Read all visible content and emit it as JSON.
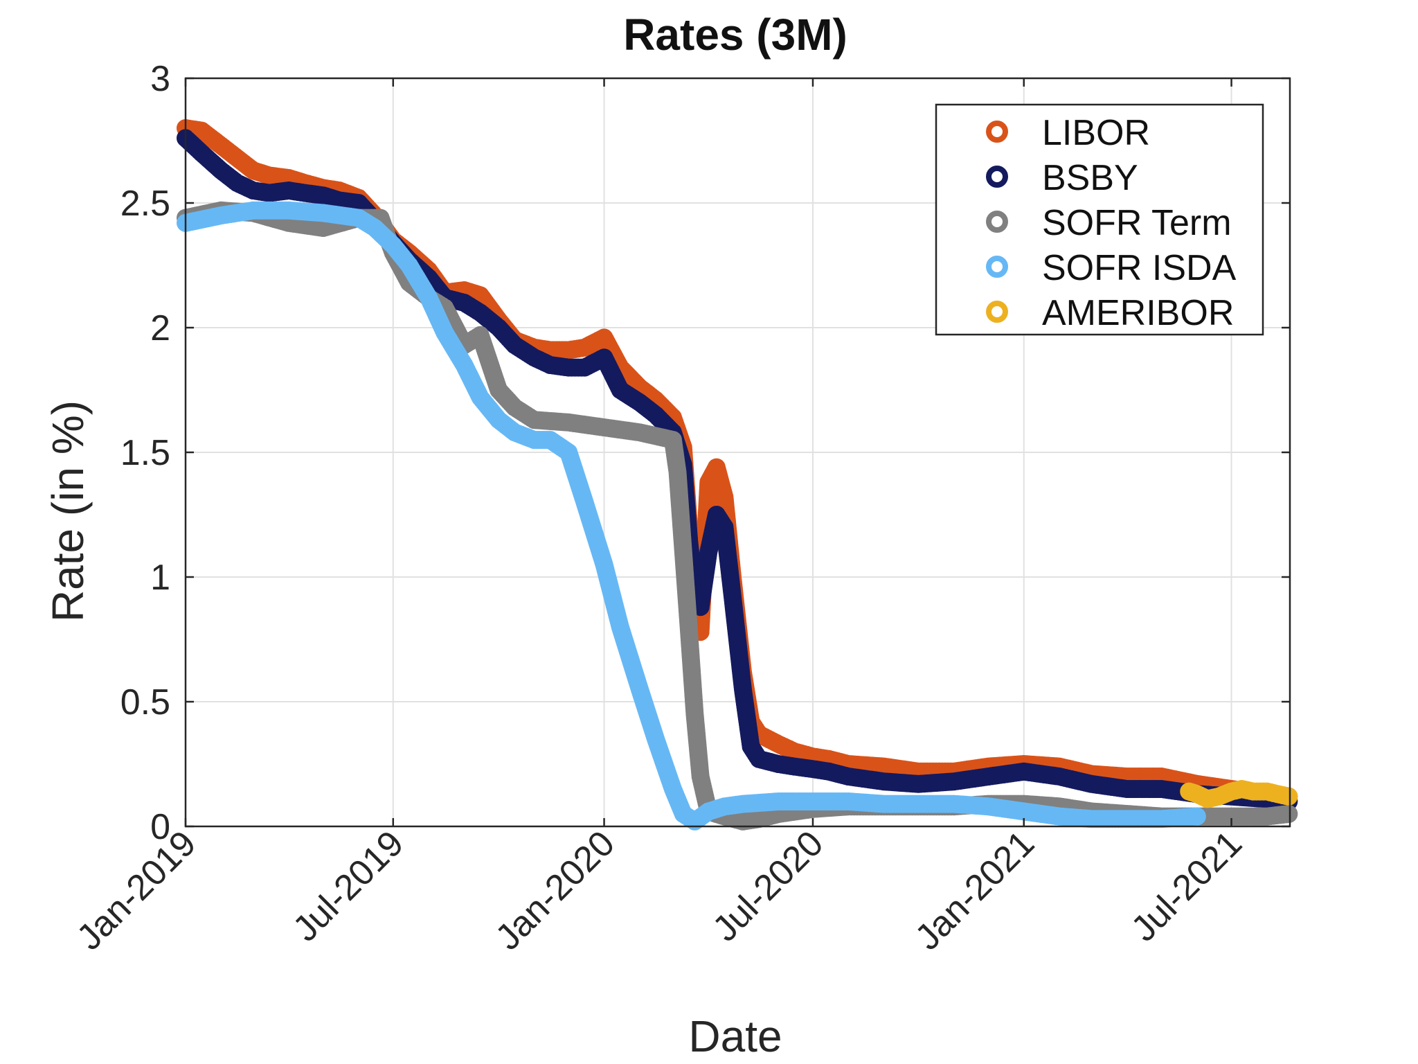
{
  "chart_data": {
    "type": "scatter",
    "title": "Rates (3M)",
    "xlabel": "Date",
    "ylabel": "Rate (in %)",
    "x_axis_type": "date",
    "xlim": [
      "2019-01-01",
      "2021-08-21"
    ],
    "ylim": [
      0,
      3
    ],
    "xticks": [
      "2019-01-01",
      "2019-07-01",
      "2020-01-01",
      "2020-07-01",
      "2021-01-01",
      "2021-07-01"
    ],
    "xtick_labels": [
      "Jan-2019",
      "Jul-2019",
      "Jan-2020",
      "Jul-2020",
      "Jan-2021",
      "Jul-2021"
    ],
    "yticks": [
      0,
      0.5,
      1,
      1.5,
      2,
      2.5,
      3
    ],
    "ytick_labels": [
      "0",
      "0.5",
      "1",
      "1.5",
      "2",
      "2.5",
      "3"
    ],
    "grid": true,
    "legend_position": "top-right",
    "marker": "open-circle",
    "series": [
      {
        "name": "LIBOR",
        "color": "#d95319",
        "x": [
          "2019-01-01",
          "2019-01-15",
          "2019-02-01",
          "2019-02-15",
          "2019-03-01",
          "2019-03-15",
          "2019-04-01",
          "2019-04-15",
          "2019-05-01",
          "2019-05-15",
          "2019-06-01",
          "2019-06-15",
          "2019-07-01",
          "2019-07-15",
          "2019-08-01",
          "2019-08-15",
          "2019-09-01",
          "2019-09-15",
          "2019-10-01",
          "2019-10-15",
          "2019-11-01",
          "2019-11-15",
          "2019-12-01",
          "2019-12-15",
          "2020-01-01",
          "2020-01-15",
          "2020-02-01",
          "2020-02-15",
          "2020-03-01",
          "2020-03-10",
          "2020-03-15",
          "2020-03-20",
          "2020-03-25",
          "2020-04-01",
          "2020-04-08",
          "2020-04-15",
          "2020-04-22",
          "2020-05-01",
          "2020-05-08",
          "2020-05-15",
          "2020-06-01",
          "2020-06-15",
          "2020-07-01",
          "2020-07-15",
          "2020-08-01",
          "2020-09-01",
          "2020-10-01",
          "2020-11-01",
          "2020-12-01",
          "2021-01-01",
          "2021-02-01",
          "2021-03-01",
          "2021-04-01",
          "2021-05-01",
          "2021-06-01",
          "2021-07-01",
          "2021-08-01",
          "2021-08-20"
        ],
        "y": [
          2.8,
          2.79,
          2.73,
          2.68,
          2.63,
          2.61,
          2.6,
          2.58,
          2.56,
          2.55,
          2.52,
          2.45,
          2.35,
          2.3,
          2.23,
          2.14,
          2.15,
          2.13,
          2.03,
          1.95,
          1.92,
          1.91,
          1.91,
          1.92,
          1.96,
          1.84,
          1.76,
          1.71,
          1.64,
          1.52,
          1.2,
          0.95,
          0.78,
          1.38,
          1.44,
          1.32,
          1.0,
          0.62,
          0.42,
          0.37,
          0.33,
          0.3,
          0.28,
          0.27,
          0.25,
          0.24,
          0.22,
          0.22,
          0.24,
          0.25,
          0.24,
          0.21,
          0.2,
          0.2,
          0.17,
          0.15,
          0.13,
          0.12
        ]
      },
      {
        "name": "BSBY",
        "color": "#141a5e",
        "x": [
          "2019-01-01",
          "2019-01-15",
          "2019-02-01",
          "2019-02-15",
          "2019-03-01",
          "2019-03-15",
          "2019-04-01",
          "2019-04-15",
          "2019-05-01",
          "2019-05-15",
          "2019-06-01",
          "2019-06-15",
          "2019-07-01",
          "2019-07-15",
          "2019-08-01",
          "2019-08-15",
          "2019-09-01",
          "2019-09-15",
          "2019-10-01",
          "2019-10-15",
          "2019-11-01",
          "2019-11-15",
          "2019-12-01",
          "2019-12-15",
          "2020-01-01",
          "2020-01-15",
          "2020-02-01",
          "2020-02-15",
          "2020-03-01",
          "2020-03-10",
          "2020-03-15",
          "2020-03-20",
          "2020-03-25",
          "2020-04-01",
          "2020-04-08",
          "2020-04-15",
          "2020-04-22",
          "2020-05-01",
          "2020-05-08",
          "2020-05-15",
          "2020-06-01",
          "2020-06-15",
          "2020-07-01",
          "2020-07-15",
          "2020-08-01",
          "2020-09-01",
          "2020-10-01",
          "2020-11-01",
          "2020-12-01",
          "2021-01-01",
          "2021-02-01",
          "2021-03-01",
          "2021-04-01",
          "2021-05-01",
          "2021-06-01",
          "2021-07-01",
          "2021-08-01",
          "2021-08-20"
        ],
        "y": [
          2.76,
          2.7,
          2.63,
          2.58,
          2.55,
          2.54,
          2.55,
          2.54,
          2.53,
          2.51,
          2.5,
          2.43,
          2.34,
          2.27,
          2.2,
          2.12,
          2.1,
          2.06,
          2.0,
          1.93,
          1.88,
          1.85,
          1.84,
          1.84,
          1.88,
          1.75,
          1.7,
          1.65,
          1.58,
          1.45,
          1.15,
          0.93,
          0.88,
          1.1,
          1.25,
          1.2,
          0.92,
          0.55,
          0.32,
          0.27,
          0.25,
          0.24,
          0.23,
          0.22,
          0.2,
          0.18,
          0.17,
          0.18,
          0.2,
          0.22,
          0.2,
          0.17,
          0.15,
          0.15,
          0.13,
          0.12,
          0.11,
          0.1
        ]
      },
      {
        "name": "SOFR Term",
        "color": "#808080",
        "x": [
          "2019-01-01",
          "2019-02-01",
          "2019-03-01",
          "2019-04-01",
          "2019-05-01",
          "2019-06-01",
          "2019-06-20",
          "2019-07-01",
          "2019-07-15",
          "2019-08-01",
          "2019-08-15",
          "2019-09-01",
          "2019-09-15",
          "2019-10-01",
          "2019-10-15",
          "2019-11-01",
          "2019-12-01",
          "2020-01-01",
          "2020-02-01",
          "2020-03-01",
          "2020-03-05",
          "2020-03-10",
          "2020-03-15",
          "2020-03-20",
          "2020-03-25",
          "2020-04-01",
          "2020-04-15",
          "2020-05-01",
          "2020-05-15",
          "2020-06-01",
          "2020-07-01",
          "2020-08-01",
          "2020-09-01",
          "2020-10-01",
          "2020-11-01",
          "2020-12-01",
          "2021-01-01",
          "2021-02-01",
          "2021-03-01",
          "2021-04-01",
          "2021-05-01",
          "2021-06-01",
          "2021-07-01",
          "2021-08-01",
          "2021-08-20"
        ],
        "y": [
          2.44,
          2.47,
          2.46,
          2.42,
          2.4,
          2.44,
          2.44,
          2.3,
          2.18,
          2.12,
          2.08,
          1.93,
          1.97,
          1.75,
          1.68,
          1.63,
          1.62,
          1.6,
          1.58,
          1.55,
          1.42,
          1.1,
          0.78,
          0.45,
          0.2,
          0.06,
          0.04,
          0.02,
          0.03,
          0.05,
          0.07,
          0.08,
          0.08,
          0.08,
          0.08,
          0.09,
          0.09,
          0.08,
          0.06,
          0.05,
          0.04,
          0.04,
          0.04,
          0.04,
          0.05
        ]
      },
      {
        "name": "SOFR ISDA",
        "color": "#66b8f5",
        "x": [
          "2019-01-01",
          "2019-02-01",
          "2019-03-01",
          "2019-04-01",
          "2019-05-01",
          "2019-06-01",
          "2019-06-15",
          "2019-07-01",
          "2019-07-15",
          "2019-08-01",
          "2019-08-15",
          "2019-09-01",
          "2019-09-15",
          "2019-10-01",
          "2019-10-15",
          "2019-11-01",
          "2019-11-15",
          "2019-12-01",
          "2019-12-15",
          "2020-01-01",
          "2020-01-15",
          "2020-02-01",
          "2020-02-15",
          "2020-03-01",
          "2020-03-10",
          "2020-03-20",
          "2020-04-01",
          "2020-04-15",
          "2020-05-01",
          "2020-06-01",
          "2020-07-01",
          "2020-08-01",
          "2020-09-01",
          "2020-10-01",
          "2020-11-01",
          "2020-12-01",
          "2021-01-01",
          "2021-02-01",
          "2021-03-01",
          "2021-04-01",
          "2021-05-01",
          "2021-06-01"
        ],
        "y": [
          2.42,
          2.45,
          2.47,
          2.47,
          2.46,
          2.44,
          2.4,
          2.33,
          2.25,
          2.12,
          1.98,
          1.85,
          1.72,
          1.63,
          1.58,
          1.55,
          1.55,
          1.5,
          1.3,
          1.05,
          0.8,
          0.55,
          0.35,
          0.15,
          0.05,
          0.02,
          0.06,
          0.08,
          0.09,
          0.1,
          0.1,
          0.1,
          0.09,
          0.09,
          0.09,
          0.08,
          0.06,
          0.04,
          0.03,
          0.03,
          0.03,
          0.04
        ]
      },
      {
        "name": "AMERIBOR",
        "color": "#edb120",
        "x": [
          "2021-05-25",
          "2021-06-01",
          "2021-06-10",
          "2021-06-20",
          "2021-07-01",
          "2021-07-10",
          "2021-07-20",
          "2021-08-01",
          "2021-08-10",
          "2021-08-20"
        ],
        "y": [
          0.14,
          0.13,
          0.11,
          0.12,
          0.14,
          0.15,
          0.14,
          0.14,
          0.13,
          0.12
        ]
      }
    ]
  }
}
